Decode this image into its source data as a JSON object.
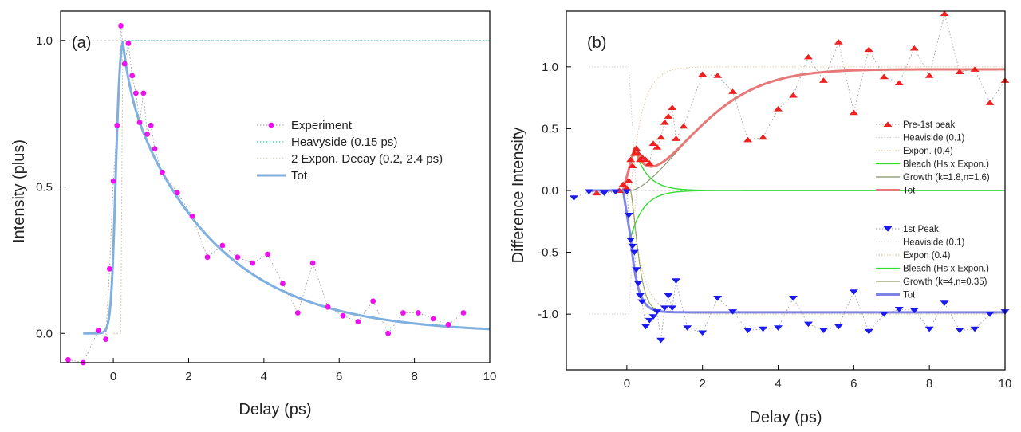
{
  "chart_data": [
    {
      "panel": "(a)",
      "type": "scatter",
      "xlabel": "Delay (ps)",
      "ylabel": "Intensity (plus)",
      "xlim": [
        -1.4,
        10
      ],
      "ylim": [
        -0.1,
        1.1
      ],
      "xticks": [
        0,
        2,
        4,
        6,
        8,
        10
      ],
      "yticks": [
        0.0,
        0.5,
        1.0
      ],
      "grid": false,
      "legend_position": "center-right",
      "references": {
        "y": [
          1.0
        ],
        "color": "#c8c8c8"
      },
      "series": [
        {
          "name": "Experiment",
          "kind": "markers+dotted",
          "color": "#ee11ee",
          "line_color": "#9a9a9a",
          "x": [
            -1.2,
            -0.8,
            -0.4,
            -0.2,
            -0.1,
            0.0,
            0.1,
            0.2,
            0.3,
            0.4,
            0.5,
            0.6,
            0.7,
            0.8,
            0.9,
            1.0,
            1.1,
            1.3,
            1.7,
            2.1,
            2.5,
            2.9,
            3.3,
            3.7,
            4.1,
            4.5,
            4.9,
            5.3,
            5.7,
            6.1,
            6.5,
            6.9,
            7.3,
            7.7,
            8.1,
            8.5,
            8.9,
            9.3
          ],
          "y": [
            -0.09,
            -0.1,
            0.01,
            -0.02,
            0.22,
            0.52,
            0.71,
            1.05,
            0.92,
            0.99,
            0.88,
            0.82,
            0.72,
            0.82,
            0.68,
            0.71,
            0.63,
            0.55,
            0.48,
            0.4,
            0.26,
            0.3,
            0.26,
            0.24,
            0.27,
            0.17,
            0.07,
            0.24,
            0.09,
            0.06,
            0.04,
            0.11,
            0.0,
            0.07,
            0.07,
            0.05,
            0.03,
            0.07
          ]
        },
        {
          "name": "Heavyside (0.15 ps)",
          "kind": "model",
          "color": "#44d4c8"
        },
        {
          "name": "2 Expon. Decay (0.2, 2.4 ps)",
          "kind": "model",
          "color": "#b7bf9a"
        },
        {
          "name": "Tot",
          "kind": "fit",
          "color": "#7fb0e0"
        }
      ]
    },
    {
      "panel": "(b)",
      "type": "scatter",
      "xlabel": "Delay (ps)",
      "ylabel": "Difference Intensity",
      "xlim": [
        -1.6,
        10
      ],
      "ylim": [
        -1.45,
        1.45
      ],
      "xticks": [
        0,
        2,
        4,
        6,
        8,
        10
      ],
      "yticks": [
        1.0,
        0.5,
        0.0,
        -0.5,
        -1.0
      ],
      "grid": false,
      "legend_position": "right",
      "series": [
        {
          "name": "Pre-1st peak",
          "kind": "markers+dotted",
          "color": "#ee2020",
          "line_color": "#9a9a9a",
          "marker": "triangle-up",
          "x": [
            -0.8,
            -0.2,
            -0.1,
            0.0,
            0.05,
            0.1,
            0.15,
            0.2,
            0.25,
            0.3,
            0.35,
            0.4,
            0.5,
            0.6,
            0.7,
            0.8,
            0.9,
            1.0,
            1.1,
            1.2,
            1.3,
            1.5,
            2.0,
            2.4,
            2.8,
            3.2,
            3.6,
            4.0,
            4.4,
            4.8,
            5.2,
            5.6,
            6.0,
            6.4,
            6.8,
            7.2,
            7.6,
            8.0,
            8.4,
            8.8,
            9.2,
            9.6,
            10.0
          ],
          "y": [
            -0.02,
            0.0,
            0.05,
            0.02,
            0.08,
            0.25,
            0.2,
            0.3,
            0.34,
            0.3,
            0.25,
            0.27,
            0.25,
            0.22,
            0.38,
            0.35,
            0.43,
            0.55,
            0.6,
            0.67,
            0.42,
            0.52,
            0.94,
            0.93,
            0.8,
            0.41,
            0.43,
            0.66,
            0.77,
            1.08,
            0.89,
            1.2,
            0.63,
            1.14,
            0.92,
            0.87,
            1.15,
            0.93,
            1.43,
            0.96,
            0.98,
            0.71,
            0.89
          ]
        },
        {
          "name": "Heaviside (0.1)",
          "kind": "model",
          "color": "#d0d0d0"
        },
        {
          "name": "Expon. (0.4)",
          "kind": "model",
          "color": "#e0c7a6"
        },
        {
          "name": "Bleach (Hs x Expon.)",
          "kind": "model",
          "color": "#33dd33"
        },
        {
          "name": "Growth (k=1.8,n=1.6)",
          "kind": "model",
          "color": "#7f8f66"
        },
        {
          "name": "Tot",
          "kind": "fit",
          "color": "#e87878"
        },
        {
          "name": "1st Peak",
          "kind": "markers+dotted",
          "color": "#1a1aee",
          "line_color": "#9a9a9a",
          "marker": "triangle-down",
          "x": [
            -1.4,
            -1.0,
            -0.6,
            -0.3,
            0.0,
            0.05,
            0.1,
            0.15,
            0.2,
            0.25,
            0.3,
            0.35,
            0.4,
            0.5,
            0.6,
            0.7,
            0.8,
            0.9,
            1.0,
            1.1,
            1.2,
            1.3,
            1.6,
            2.0,
            2.4,
            2.8,
            3.2,
            3.6,
            4.0,
            4.4,
            4.8,
            5.2,
            5.6,
            6.0,
            6.4,
            6.8,
            7.2,
            7.6,
            8.0,
            8.4,
            8.8,
            9.2,
            9.6,
            10.0
          ],
          "y": [
            -0.06,
            -0.01,
            -0.02,
            -0.01,
            -0.01,
            -0.2,
            -0.4,
            -0.45,
            -0.5,
            -0.64,
            -0.75,
            -0.85,
            -0.9,
            -1.1,
            -1.05,
            -1.02,
            -0.98,
            -1.21,
            -0.95,
            -0.85,
            -0.95,
            -0.73,
            -1.11,
            -1.15,
            -0.87,
            -0.98,
            -1.13,
            -1.12,
            -1.11,
            -0.87,
            -1.08,
            -1.13,
            -1.1,
            -0.82,
            -1.14,
            -1.0,
            -0.96,
            -0.97,
            -1.12,
            -0.91,
            -1.13,
            -1.12,
            -1.0,
            -0.98
          ]
        },
        {
          "name": "Heaviside (0.1)",
          "kind": "model",
          "color": "#d0d0d0"
        },
        {
          "name": "Expon (0.4)",
          "kind": "model",
          "color": "#e0c7a6"
        },
        {
          "name": "Bleach (Hs x Expon.)",
          "kind": "model",
          "color": "#33dd33"
        },
        {
          "name": "Growth (k=4,n=0.35)",
          "kind": "model",
          "color": "#8f9f56"
        },
        {
          "name": "Tot",
          "kind": "fit",
          "color": "#7e84e6"
        }
      ]
    }
  ]
}
